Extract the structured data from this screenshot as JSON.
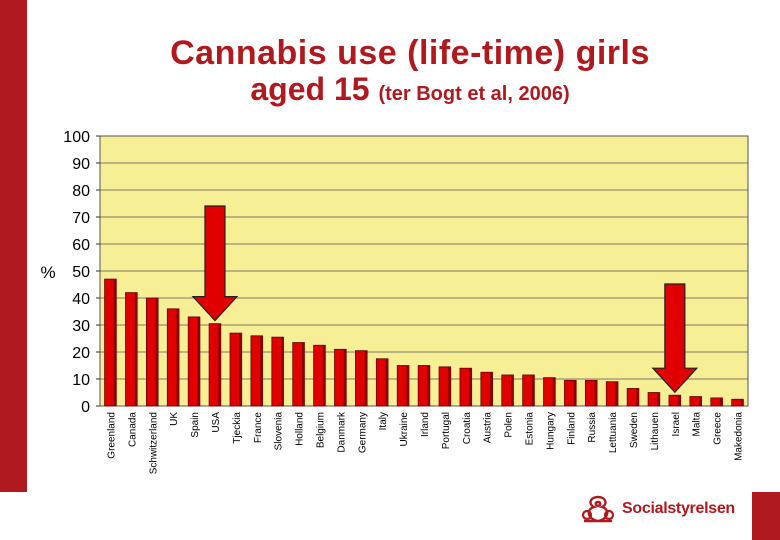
{
  "header": {
    "title_line1": "Cannabis use (life-time) girls",
    "title_line2": "aged 15",
    "title_citation": "(ter Bogt et al, 2006)"
  },
  "colors": {
    "accent": "#b0191e",
    "plot_background": "#f6ef96",
    "bar": "#e00000",
    "arrow": "#e00000"
  },
  "logo": {
    "text": "Socialstyrelsen"
  },
  "chart_data": {
    "type": "bar",
    "title": "",
    "xlabel": "",
    "ylabel": "%",
    "ylim": [
      0,
      100
    ],
    "yticks": [
      0,
      10,
      20,
      30,
      40,
      50,
      60,
      70,
      80,
      90,
      100
    ],
    "grid": true,
    "categories": [
      "Greenland",
      "Canada",
      "Schwitzerland",
      "UK",
      "Spain",
      "USA",
      "Tjeckia",
      "France",
      "Slovenia",
      "Holland",
      "Belgium",
      "Danmark",
      "Germany",
      "Italy",
      "Ukraine",
      "Irland",
      "Portugal",
      "Croatia",
      "Austria",
      "Polen",
      "Estonia",
      "Hungary",
      "Finland",
      "Russia",
      "Lettuania",
      "Sweden",
      "Lithauen",
      "Israel",
      "Malta",
      "Greece",
      "Makedonia"
    ],
    "values": [
      47,
      42,
      40,
      36,
      33,
      30.5,
      27,
      26,
      25.5,
      23.5,
      22.5,
      21,
      20.5,
      17.5,
      15,
      15,
      14.5,
      14,
      12.5,
      11.5,
      11.5,
      10.5,
      9.5,
      9.5,
      9,
      6.5,
      5,
      4,
      3.5,
      3,
      2.5
    ],
    "highlighted_categories": [
      "USA",
      "Israel"
    ]
  }
}
